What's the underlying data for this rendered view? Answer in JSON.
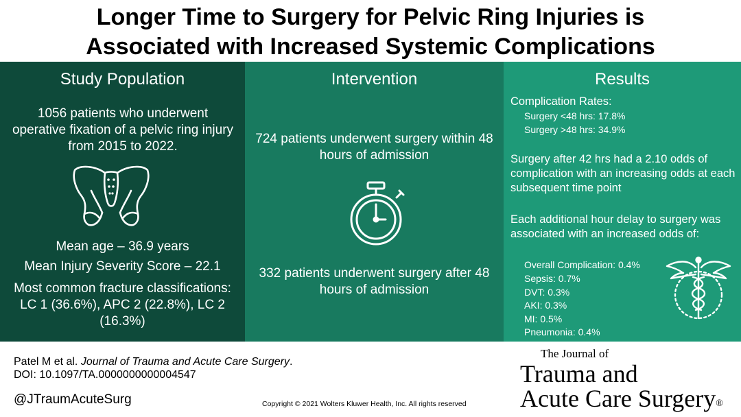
{
  "title": {
    "line1": "Longer Time to Surgery for Pelvic Ring Injuries is",
    "line2": "Associated with Increased Systemic Complications"
  },
  "study_population": {
    "heading": "Study Population",
    "description": "1056 patients who underwent operative fixation of a pelvic ring injury from 2015 to 2022.",
    "icon": "pelvis-icon",
    "mean_age": "Mean age – 36.9 years",
    "mean_iss": "Mean Injury Severity Score – 22.1",
    "fractures": "Most common fracture classifications: LC 1 (36.6%), APC 2 (22.8%), LC 2 (16.3%)"
  },
  "intervention": {
    "heading": "Intervention",
    "early": "724 patients underwent surgery within 48 hours of admission",
    "icon": "stopwatch-icon",
    "late": "332 patients underwent surgery after 48 hours of admission"
  },
  "results": {
    "heading": "Results",
    "complication_rates_label": "Complication Rates:",
    "rate_early": "Surgery <48 hrs: 17.8%",
    "rate_late": "Surgery >48 hrs: 34.9%",
    "odds_statement": "Surgery after 42 hrs had a 2.10 odds of complication with an increasing odds at each subsequent time point",
    "hourly_statement": "Each additional hour delay to surgery was associated with an increased odds of:",
    "items": [
      "Overall Complication: 0.4%",
      "Sepsis: 0.7%",
      "DVT: 0.3%",
      "AKI: 0.3%",
      "MI: 0.5%",
      "Pneumonia: 0.4%"
    ],
    "icon": "caduceus-icon"
  },
  "footer": {
    "citation_authors": "Patel M et al. ",
    "citation_journal": "Journal of Trauma and Acute Care Surgery",
    "citation_end": ".",
    "doi": "DOI: 10.1097/TA.0000000000004547",
    "handle": "@JTraumAcuteSurg",
    "copyright": "Copyright © 2021  Wolters Kluwer Health, Inc. All rights reserved"
  },
  "journal_logo": {
    "small": "The Journal of",
    "line1": "Trauma and",
    "line2": "Acute Care Surgery",
    "mark": "®"
  },
  "colors": {
    "panel1": "#0e4a3a",
    "panel2": "#187a5f",
    "panel3": "#1e9a78"
  }
}
